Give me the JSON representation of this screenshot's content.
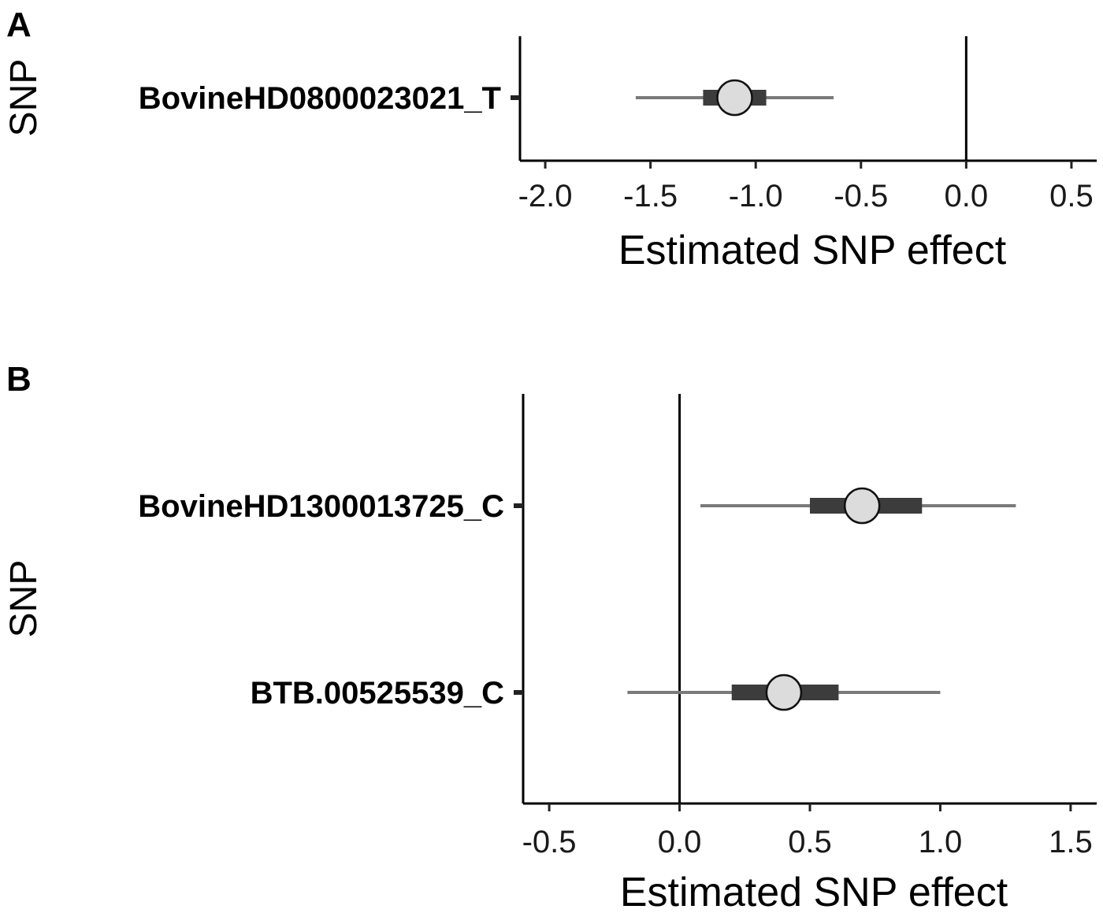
{
  "chart_data": [
    {
      "panel": "A",
      "type": "interval",
      "xlabel": "Estimated SNP effect",
      "ylabel": "SNP",
      "xlim": [
        -2.12,
        0.62
      ],
      "xticks": [
        -2.0,
        -1.5,
        -1.0,
        -0.5,
        0.0,
        0.5
      ],
      "xtick_labels": [
        "-2.0",
        "-1.5",
        "-1.0",
        "-0.5",
        "0.0",
        "0.5"
      ],
      "reference_line": 0.0,
      "grid": false,
      "categories": [
        "BovineHD0800023021_T"
      ],
      "points": [
        {
          "label": "BovineHD0800023021_T",
          "estimate": -1.1,
          "inner": [
            -1.25,
            -0.95
          ],
          "outer": [
            -1.57,
            -0.63
          ]
        }
      ],
      "colors": {
        "outer": "#7a7a7a",
        "inner": "#3c3c3c",
        "point": "#dcdcdc"
      }
    },
    {
      "panel": "B",
      "type": "interval",
      "xlabel": "Estimated SNP effect",
      "ylabel": "SNP",
      "xlim": [
        -0.6,
        1.6
      ],
      "xticks": [
        -0.5,
        0.0,
        0.5,
        1.0,
        1.5
      ],
      "xtick_labels": [
        "-0.5",
        "0.0",
        "0.5",
        "1.0",
        "1.5"
      ],
      "reference_line": 0.0,
      "grid": false,
      "categories": [
        "BovineHD1300013725_C",
        "BTB.00525539_C"
      ],
      "points": [
        {
          "label": "BovineHD1300013725_C",
          "estimate": 0.7,
          "inner": [
            0.5,
            0.93
          ],
          "outer": [
            0.08,
            1.29
          ]
        },
        {
          "label": "BTB.00525539_C",
          "estimate": 0.4,
          "inner": [
            0.2,
            0.61
          ],
          "outer": [
            -0.2,
            1.0
          ]
        }
      ],
      "colors": {
        "outer": "#7a7a7a",
        "inner": "#3c3c3c",
        "point": "#dcdcdc"
      }
    }
  ]
}
